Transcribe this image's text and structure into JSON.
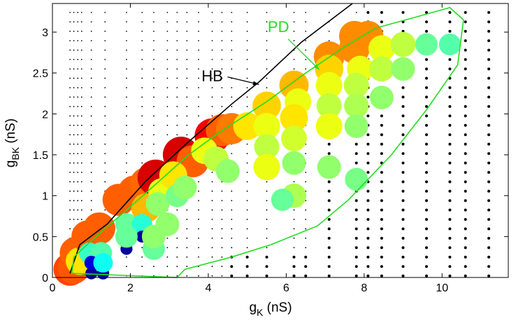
{
  "chart_data": {
    "type": "scatter",
    "xlabel": {
      "main": "g",
      "sub": "K",
      "unit": " (nS)"
    },
    "ylabel": {
      "main": "g",
      "sub": "BK",
      "unit": " (nS)"
    },
    "xlim": [
      0,
      11.7
    ],
    "ylim": [
      0,
      3.35
    ],
    "xticks": [
      0,
      2,
      4,
      6,
      8,
      10
    ],
    "yticks": [
      0,
      0.5,
      1,
      1.5,
      2,
      2.5,
      3
    ],
    "xtick_labels": [
      "0",
      "2",
      "4",
      "6",
      "8",
      "10"
    ],
    "ytick_labels": [
      "0",
      "0.5",
      "1",
      "1.5",
      "2",
      "2.5",
      "3"
    ],
    "grid": false,
    "annotations": [
      {
        "text": "HB",
        "color": "#000000",
        "label_at": [
          4.1,
          2.4
        ],
        "arrow_to": [
          5.3,
          2.36
        ]
      },
      {
        "text": "PD",
        "color": "#22dd22",
        "label_at": [
          5.8,
          3.0
        ],
        "arrow_to": [
          6.85,
          2.54
        ]
      }
    ],
    "hb_line": {
      "color": "#000000",
      "points": [
        [
          0.45,
          0.05
        ],
        [
          0.7,
          0.4
        ],
        [
          1.4,
          0.65
        ],
        [
          2.4,
          1.18
        ],
        [
          3.4,
          1.62
        ],
        [
          4.6,
          2.12
        ],
        [
          5.3,
          2.39
        ],
        [
          6.4,
          2.88
        ],
        [
          7.7,
          3.35
        ]
      ]
    },
    "pd_curve": {
      "color": "#22dd22",
      "points": [
        [
          0.5,
          0.05
        ],
        [
          0.55,
          0.25
        ],
        [
          1.0,
          0.45
        ],
        [
          2.2,
          0.95
        ],
        [
          3.5,
          1.5
        ],
        [
          4.3,
          1.78
        ],
        [
          5.5,
          2.15
        ],
        [
          6.5,
          2.5
        ],
        [
          7.5,
          2.82
        ],
        [
          8.3,
          3.05
        ],
        [
          9.3,
          3.18
        ],
        [
          10.2,
          3.3
        ],
        [
          10.55,
          3.15
        ],
        [
          10.4,
          2.6
        ],
        [
          9.6,
          2.05
        ],
        [
          8.7,
          1.5
        ],
        [
          7.6,
          0.95
        ],
        [
          6.8,
          0.63
        ],
        [
          5.6,
          0.4
        ],
        [
          4.6,
          0.25
        ],
        [
          3.4,
          0.1
        ],
        [
          3.2,
          0.0
        ]
      ]
    },
    "colormap": "jet",
    "colorscale": [
      "#00007f",
      "#0000ff",
      "#00ffff",
      "#7fff7f",
      "#ffff00",
      "#ff7f00",
      "#ff0000",
      "#7f0000"
    ],
    "marker_size_meaning": "larger circles for higher value",
    "points": [
      {
        "x": 0.45,
        "y": 0.1,
        "v": 0.78
      },
      {
        "x": 0.55,
        "y": 0.12,
        "v": 0.76
      },
      {
        "x": 0.6,
        "y": 0.3,
        "v": 0.75
      },
      {
        "x": 0.7,
        "y": 0.2,
        "v": 0.6
      },
      {
        "x": 0.9,
        "y": 0.5,
        "v": 0.75
      },
      {
        "x": 1.2,
        "y": 0.6,
        "v": 0.75
      },
      {
        "x": 0.95,
        "y": 0.3,
        "v": 0.35
      },
      {
        "x": 1.25,
        "y": 0.3,
        "v": 0.38
      },
      {
        "x": 1.0,
        "y": 0.05,
        "v": 0.03
      },
      {
        "x": 1.3,
        "y": 0.05,
        "v": 0.04
      },
      {
        "x": 1.0,
        "y": 0.18,
        "v": 0.1
      },
      {
        "x": 1.3,
        "y": 0.18,
        "v": 0.3
      },
      {
        "x": 1.7,
        "y": 0.95,
        "v": 0.75
      },
      {
        "x": 2.1,
        "y": 1.05,
        "v": 0.75
      },
      {
        "x": 2.4,
        "y": 1.15,
        "v": 0.74
      },
      {
        "x": 2.65,
        "y": 1.22,
        "v": 0.9
      },
      {
        "x": 3.3,
        "y": 1.5,
        "v": 0.9
      },
      {
        "x": 3.6,
        "y": 1.42,
        "v": 0.75
      },
      {
        "x": 4.1,
        "y": 1.73,
        "v": 0.86
      },
      {
        "x": 4.35,
        "y": 1.8,
        "v": 0.75
      },
      {
        "x": 4.6,
        "y": 1.82,
        "v": 0.72
      },
      {
        "x": 5.0,
        "y": 1.85,
        "v": 0.6
      },
      {
        "x": 2.4,
        "y": 0.85,
        "v": 0.65
      },
      {
        "x": 2.8,
        "y": 1.05,
        "v": 0.55
      },
      {
        "x": 3.1,
        "y": 1.25,
        "v": 0.6
      },
      {
        "x": 3.9,
        "y": 1.55,
        "v": 0.55
      },
      {
        "x": 4.2,
        "y": 1.45,
        "v": 0.5
      },
      {
        "x": 4.5,
        "y": 1.3,
        "v": 0.45
      },
      {
        "x": 2.7,
        "y": 0.9,
        "v": 0.45
      },
      {
        "x": 3.2,
        "y": 1.0,
        "v": 0.42
      },
      {
        "x": 3.4,
        "y": 1.1,
        "v": 0.45
      },
      {
        "x": 1.9,
        "y": 0.65,
        "v": 0.4
      },
      {
        "x": 2.3,
        "y": 0.65,
        "v": 0.33
      },
      {
        "x": 1.9,
        "y": 0.35,
        "v": 0.03
      },
      {
        "x": 2.3,
        "y": 0.5,
        "v": 0.03
      },
      {
        "x": 2.6,
        "y": 0.35,
        "v": 0.4
      },
      {
        "x": 2.6,
        "y": 0.5,
        "v": 0.45
      },
      {
        "x": 2.95,
        "y": 0.65,
        "v": 0.45
      },
      {
        "x": 1.9,
        "y": 0.5,
        "v": 0.4
      },
      {
        "x": 5.5,
        "y": 2.1,
        "v": 0.62
      },
      {
        "x": 5.5,
        "y": 1.85,
        "v": 0.55
      },
      {
        "x": 5.5,
        "y": 1.6,
        "v": 0.5
      },
      {
        "x": 5.5,
        "y": 1.35,
        "v": 0.55
      },
      {
        "x": 6.2,
        "y": 2.35,
        "v": 0.65
      },
      {
        "x": 6.3,
        "y": 2.15,
        "v": 0.55
      },
      {
        "x": 6.2,
        "y": 1.95,
        "v": 0.6
      },
      {
        "x": 6.2,
        "y": 1.7,
        "v": 0.52
      },
      {
        "x": 6.2,
        "y": 1.4,
        "v": 0.45
      },
      {
        "x": 7.1,
        "y": 2.7,
        "v": 0.7
      },
      {
        "x": 7.1,
        "y": 2.55,
        "v": 0.62
      },
      {
        "x": 7.1,
        "y": 2.35,
        "v": 0.55
      },
      {
        "x": 7.1,
        "y": 2.1,
        "v": 0.5
      },
      {
        "x": 7.1,
        "y": 1.85,
        "v": 0.55
      },
      {
        "x": 7.75,
        "y": 2.95,
        "v": 0.7
      },
      {
        "x": 8.1,
        "y": 2.95,
        "v": 0.7
      },
      {
        "x": 7.75,
        "y": 2.8,
        "v": 0.7
      },
      {
        "x": 7.9,
        "y": 2.55,
        "v": 0.55
      },
      {
        "x": 7.8,
        "y": 2.35,
        "v": 0.5
      },
      {
        "x": 7.8,
        "y": 2.1,
        "v": 0.48
      },
      {
        "x": 7.8,
        "y": 1.85,
        "v": 0.45
      },
      {
        "x": 8.45,
        "y": 2.8,
        "v": 0.55
      },
      {
        "x": 8.45,
        "y": 2.55,
        "v": 0.5
      },
      {
        "x": 8.45,
        "y": 2.2,
        "v": 0.45
      },
      {
        "x": 9.0,
        "y": 2.85,
        "v": 0.5
      },
      {
        "x": 9.0,
        "y": 2.55,
        "v": 0.45
      },
      {
        "x": 9.6,
        "y": 2.85,
        "v": 0.4
      },
      {
        "x": 10.2,
        "y": 2.85,
        "v": 0.38
      },
      {
        "x": 6.2,
        "y": 1.0,
        "v": 0.48
      },
      {
        "x": 7.1,
        "y": 1.35,
        "v": 0.45
      },
      {
        "x": 7.8,
        "y": 1.2,
        "v": 0.42
      },
      {
        "x": 5.9,
        "y": 0.95,
        "v": 0.4
      }
    ]
  }
}
